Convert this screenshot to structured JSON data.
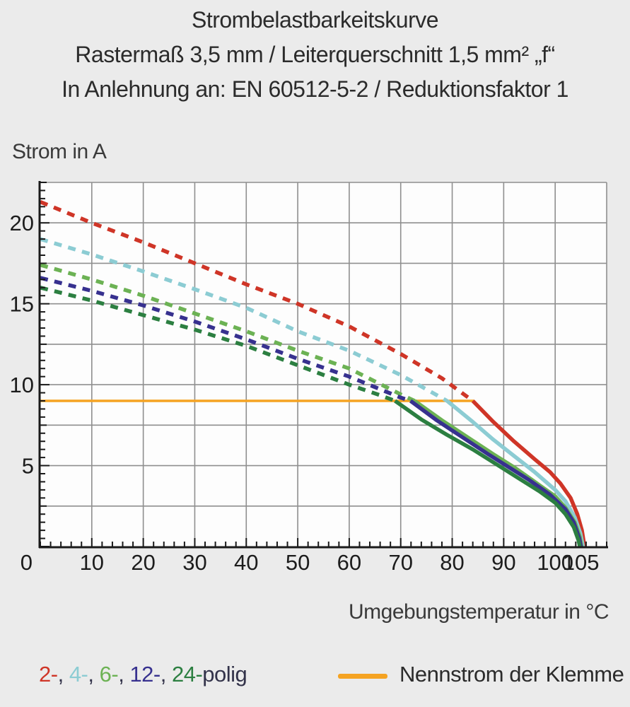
{
  "header": {
    "title_line1": "Strombelastbarkeitskurve",
    "title_line2": "Rastermaß 3,5 mm / Leiterquerschnitt 1,5 mm² „f“",
    "title_line3": "In Anlehnung an: EN 60512-5-2 / Reduktionsfaktor 1"
  },
  "legend": {
    "separator": ", ",
    "suffix": "polig",
    "text_color": "#33334a"
  },
  "chart_data": {
    "type": "line",
    "title": "Strombelastbarkeitskurve",
    "subtitle": "Rastermaß 3,5 mm / Leiterquerschnitt 1,5 mm² „f“",
    "standard_note": "In Anlehnung an: EN 60512-5-2 / Reduktionsfaktor 1",
    "ylabel": "Strom in A",
    "xlabel": "Umgebungstemperatur in °C",
    "xlim": [
      0,
      110
    ],
    "ylim": [
      0,
      22.5
    ],
    "grid": true,
    "grid_color": "#8f8f8f",
    "plot_background": "#fdfdfd",
    "axis_color": "#1a1a1a",
    "x_gridlines": [
      10,
      20,
      30,
      40,
      50,
      60,
      70,
      80,
      90,
      100
    ],
    "y_gridlines": [
      2.5,
      5,
      7.5,
      10,
      12.5,
      15,
      17.5,
      20,
      22.5
    ],
    "x_tick_labels": [
      {
        "value": 10,
        "label": "10"
      },
      {
        "value": 20,
        "label": "20"
      },
      {
        "value": 30,
        "label": "30"
      },
      {
        "value": 40,
        "label": "40"
      },
      {
        "value": 50,
        "label": "50"
      },
      {
        "value": 60,
        "label": "60"
      },
      {
        "value": 70,
        "label": "70"
      },
      {
        "value": 80,
        "label": "80"
      },
      {
        "value": 90,
        "label": "90"
      },
      {
        "value": 100,
        "label": "100"
      },
      {
        "value": 105,
        "label": "105"
      }
    ],
    "y_tick_labels": [
      {
        "value": 0,
        "label": "0"
      },
      {
        "value": 5,
        "label": "5"
      },
      {
        "value": 10,
        "label": "10"
      },
      {
        "value": 15,
        "label": "15"
      },
      {
        "value": 20,
        "label": "20"
      }
    ],
    "x_minor_step": 2,
    "y_minor_step": 0.5,
    "nominal_current": {
      "label": "Nennstrom der Klemme",
      "value": 9,
      "x_range": [
        0,
        84.2
      ],
      "color": "#f5a322"
    },
    "series": [
      {
        "name": "2-polig",
        "legend_label": "2-",
        "color": "#cf3527",
        "dashed": [
          [
            0,
            21.3
          ],
          [
            10,
            20.0
          ],
          [
            20,
            18.8
          ],
          [
            30,
            17.5
          ],
          [
            40,
            16.2
          ],
          [
            50,
            15.0
          ],
          [
            60,
            13.6
          ],
          [
            70,
            11.9
          ],
          [
            78,
            10.4
          ],
          [
            84,
            9.0
          ]
        ],
        "solid": [
          [
            84,
            9.0
          ],
          [
            88,
            7.7
          ],
          [
            92,
            6.5
          ],
          [
            96,
            5.4
          ],
          [
            99,
            4.6
          ],
          [
            101,
            3.9
          ],
          [
            103,
            3.0
          ],
          [
            104.3,
            2.0
          ],
          [
            105.2,
            1.0
          ],
          [
            105.7,
            0
          ]
        ]
      },
      {
        "name": "4-polig",
        "legend_label": "4-",
        "color": "#8cccd3",
        "dashed": [
          [
            0,
            19.0
          ],
          [
            10,
            18.05
          ],
          [
            20,
            17.0
          ],
          [
            30,
            15.9
          ],
          [
            40,
            14.75
          ],
          [
            50,
            13.3
          ],
          [
            60,
            12.1
          ],
          [
            70,
            10.6
          ],
          [
            79,
            9.0
          ]
        ],
        "solid": [
          [
            79,
            9.0
          ],
          [
            84,
            7.7
          ],
          [
            88,
            6.6
          ],
          [
            92,
            5.6
          ],
          [
            96,
            4.6
          ],
          [
            100,
            3.5
          ],
          [
            102,
            2.8
          ],
          [
            103.8,
            1.8
          ],
          [
            104.9,
            0.8
          ],
          [
            105.4,
            0
          ]
        ]
      },
      {
        "name": "6-polig",
        "legend_label": "6-",
        "color": "#6cb254",
        "dashed": [
          [
            0,
            17.4
          ],
          [
            10,
            16.5
          ],
          [
            20,
            15.5
          ],
          [
            30,
            14.4
          ],
          [
            40,
            13.3
          ],
          [
            50,
            12.1
          ],
          [
            60,
            11.0
          ],
          [
            70,
            9.4
          ],
          [
            72.7,
            9.0
          ]
        ],
        "solid": [
          [
            72.7,
            9.0
          ],
          [
            78,
            7.8
          ],
          [
            83,
            6.75
          ],
          [
            88,
            5.7
          ],
          [
            92,
            4.9
          ],
          [
            96,
            4.0
          ],
          [
            100,
            3.1
          ],
          [
            102,
            2.4
          ],
          [
            103.8,
            1.5
          ],
          [
            104.8,
            0.6
          ],
          [
            105.1,
            0
          ]
        ]
      },
      {
        "name": "12-polig",
        "legend_label": "12-",
        "color": "#37318f",
        "dashed": [
          [
            0,
            16.6
          ],
          [
            10,
            15.8
          ],
          [
            20,
            14.9
          ],
          [
            30,
            13.9
          ],
          [
            40,
            12.8
          ],
          [
            50,
            11.6
          ],
          [
            60,
            10.5
          ],
          [
            70,
            9.2
          ],
          [
            71.9,
            9.0
          ]
        ],
        "solid": [
          [
            71.9,
            9.0
          ],
          [
            77,
            7.8
          ],
          [
            82,
            6.75
          ],
          [
            87,
            5.7
          ],
          [
            91,
            4.9
          ],
          [
            95,
            4.1
          ],
          [
            99,
            3.2
          ],
          [
            102,
            2.3
          ],
          [
            103.6,
            1.5
          ],
          [
            104.7,
            0.5
          ],
          [
            105,
            0
          ]
        ]
      },
      {
        "name": "24-polig",
        "legend_label": "24-",
        "color": "#2c7f41",
        "dashed": [
          [
            0,
            16.0
          ],
          [
            10,
            15.2
          ],
          [
            20,
            14.3
          ],
          [
            30,
            13.4
          ],
          [
            40,
            12.4
          ],
          [
            50,
            11.2
          ],
          [
            60,
            10.0
          ],
          [
            66,
            9.35
          ],
          [
            68.9,
            9.0
          ]
        ],
        "solid": [
          [
            68.9,
            9.0
          ],
          [
            74,
            7.85
          ],
          [
            79,
            6.9
          ],
          [
            84,
            6.0
          ],
          [
            89,
            5.0
          ],
          [
            93,
            4.2
          ],
          [
            97,
            3.4
          ],
          [
            100,
            2.7
          ],
          [
            102,
            2.0
          ],
          [
            103.6,
            1.2
          ],
          [
            104.5,
            0.4
          ],
          [
            104.8,
            0
          ]
        ]
      }
    ]
  }
}
